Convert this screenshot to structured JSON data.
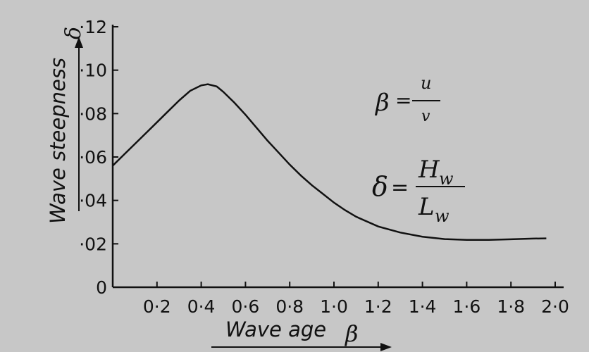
{
  "chart_data": {
    "type": "line",
    "xlabel": "Wave  age",
    "xlabel_symbol": "β",
    "ylabel": "Wave   steepness",
    "ylabel_symbol": "δ",
    "xlim": [
      0,
      2.0
    ],
    "ylim": [
      0,
      0.12
    ],
    "x_ticks": [
      0.2,
      0.4,
      0.6,
      0.8,
      1.0,
      1.2,
      1.4,
      1.6,
      1.8,
      2.0
    ],
    "x_tick_labels": [
      "0·2",
      "0·4",
      "0·6",
      "0·8",
      "1·0",
      "1·2",
      "1·4",
      "1·6",
      "1·8",
      "2·0"
    ],
    "y_ticks": [
      0,
      0.02,
      0.04,
      0.06,
      0.08,
      0.1,
      0.12
    ],
    "y_tick_labels": [
      "0",
      "·02",
      "·04",
      "·06",
      "·08",
      "·10",
      "·12"
    ],
    "grid": false,
    "series": [
      {
        "x": [
          0.0,
          0.05,
          0.1,
          0.15,
          0.2,
          0.25,
          0.3,
          0.35,
          0.4,
          0.43,
          0.47,
          0.5,
          0.55,
          0.6,
          0.65,
          0.7,
          0.75,
          0.8,
          0.85,
          0.9,
          0.95,
          1.0,
          1.05,
          1.1,
          1.2,
          1.3,
          1.4,
          1.5,
          1.6,
          1.7,
          1.8,
          1.9,
          1.96
        ],
        "y": [
          0.056,
          0.061,
          0.066,
          0.071,
          0.076,
          0.081,
          0.086,
          0.0905,
          0.093,
          0.0935,
          0.0925,
          0.09,
          0.085,
          0.0795,
          0.0735,
          0.0675,
          0.062,
          0.0565,
          0.0515,
          0.047,
          0.043,
          0.039,
          0.0355,
          0.0325,
          0.028,
          0.0252,
          0.0233,
          0.0222,
          0.0218,
          0.0218,
          0.0221,
          0.0224,
          0.0225
        ]
      }
    ],
    "formulas": {
      "beta_lhs": "β",
      "beta_num": "u",
      "beta_den": "v",
      "delta_lhs": "δ",
      "delta_num": "H",
      "delta_num_sub": "w",
      "delta_den": "L",
      "delta_den_sub": "w"
    }
  }
}
